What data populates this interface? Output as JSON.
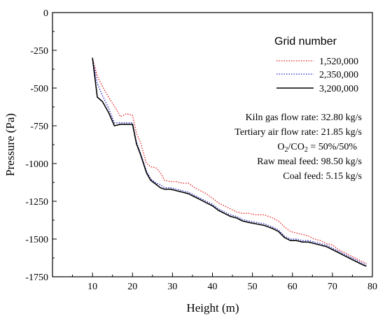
{
  "chart_data": {
    "type": "line",
    "xlabel": "Height (m)",
    "ylabel": "Pressure (Pa)",
    "xlim": [
      0,
      80
    ],
    "ylim": [
      -1750,
      0
    ],
    "x_ticks": [
      "10",
      "20",
      "30",
      "40",
      "50",
      "60",
      "70",
      "80"
    ],
    "y_ticks": [
      "0",
      "-250",
      "-500",
      "-750",
      "-1000",
      "-1250",
      "-1500",
      "-1750"
    ],
    "legend_title": "Grid number",
    "legend_position": "top-right",
    "series": [
      {
        "name": "1,520,000",
        "color": "#e8201e",
        "style": "dotted",
        "x": [
          10,
          11.2,
          12.5,
          14,
          15.5,
          17,
          18.5,
          20,
          21,
          22,
          23.5,
          24.5,
          26,
          27,
          28,
          29.5,
          31,
          32.5,
          34,
          35.5,
          37,
          38.5,
          40,
          41.5,
          43,
          44.5,
          46,
          47.5,
          49,
          51,
          53,
          55,
          56.5,
          58,
          59.5,
          61,
          62.5,
          64,
          65.5,
          67,
          68.5,
          70,
          71.5,
          73,
          74.5,
          76,
          77.5,
          78.5
        ],
        "y": [
          -300,
          -420,
          -490,
          -560,
          -620,
          -690,
          -670,
          -680,
          -800,
          -860,
          -1000,
          -1020,
          -1030,
          -1060,
          -1110,
          -1120,
          -1120,
          -1130,
          -1130,
          -1160,
          -1180,
          -1200,
          -1230,
          -1260,
          -1280,
          -1300,
          -1320,
          -1330,
          -1330,
          -1340,
          -1340,
          -1360,
          -1380,
          -1420,
          -1450,
          -1460,
          -1470,
          -1480,
          -1500,
          -1510,
          -1530,
          -1540,
          -1570,
          -1590,
          -1610,
          -1630,
          -1650,
          -1660
        ]
      },
      {
        "name": "2,350,000",
        "color": "#2222cc",
        "style": "dotted",
        "x": [
          10,
          11.2,
          12.5,
          14,
          15.5,
          17,
          18.5,
          20,
          21,
          22,
          23.5,
          24.5,
          26,
          27,
          28,
          29.5,
          31,
          32.5,
          34,
          35.5,
          37,
          38.5,
          40,
          41.5,
          43,
          44.5,
          46,
          47.5,
          49,
          51,
          53,
          55,
          56.5,
          58,
          59.5,
          61,
          62.5,
          64,
          65.5,
          67,
          68.5,
          70,
          71.5,
          73,
          74.5,
          76,
          77.5,
          78.5
        ],
        "y": [
          -300,
          -470,
          -550,
          -630,
          -730,
          -730,
          -730,
          -730,
          -860,
          -930,
          -1050,
          -1100,
          -1130,
          -1140,
          -1160,
          -1160,
          -1170,
          -1180,
          -1190,
          -1210,
          -1230,
          -1250,
          -1270,
          -1300,
          -1320,
          -1340,
          -1350,
          -1370,
          -1380,
          -1390,
          -1400,
          -1420,
          -1440,
          -1480,
          -1500,
          -1500,
          -1510,
          -1510,
          -1520,
          -1530,
          -1540,
          -1560,
          -1580,
          -1600,
          -1620,
          -1640,
          -1660,
          -1670
        ]
      },
      {
        "name": "3,200,000",
        "color": "#000000",
        "style": "solid",
        "x": [
          10,
          11.2,
          12.5,
          14,
          15.5,
          17,
          18.5,
          20,
          21,
          22,
          23.5,
          24.5,
          26,
          27,
          28,
          29.5,
          31,
          32.5,
          34,
          35.5,
          37,
          38.5,
          40,
          41.5,
          43,
          44.5,
          46,
          47.5,
          49,
          51,
          53,
          55,
          56.5,
          58,
          59.5,
          61,
          62.5,
          64,
          65.5,
          67,
          68.5,
          70,
          71.5,
          73,
          74.5,
          76,
          77.5,
          78.5
        ],
        "y": [
          -300,
          -560,
          -590,
          -660,
          -750,
          -740,
          -740,
          -740,
          -870,
          -940,
          -1060,
          -1110,
          -1140,
          -1160,
          -1170,
          -1170,
          -1180,
          -1190,
          -1200,
          -1220,
          -1240,
          -1260,
          -1280,
          -1310,
          -1330,
          -1350,
          -1360,
          -1380,
          -1390,
          -1400,
          -1410,
          -1430,
          -1450,
          -1490,
          -1510,
          -1510,
          -1520,
          -1520,
          -1530,
          -1540,
          -1550,
          -1570,
          -1590,
          -1610,
          -1630,
          -1650,
          -1670,
          -1680
        ]
      }
    ],
    "annotations": [
      {
        "label": "Kiln gas flow rate:",
        "value": "32.80 kg/s"
      },
      {
        "label": "Tertiary air flow rate:",
        "value": "21.85 kg/s"
      },
      {
        "label": "O2/CO2 = 50%/50%",
        "value": ""
      },
      {
        "label": "Raw meal feed:",
        "value": "98.50 kg/s"
      },
      {
        "label": "Coal feed:",
        "value": "5.15 kg/s"
      }
    ]
  }
}
